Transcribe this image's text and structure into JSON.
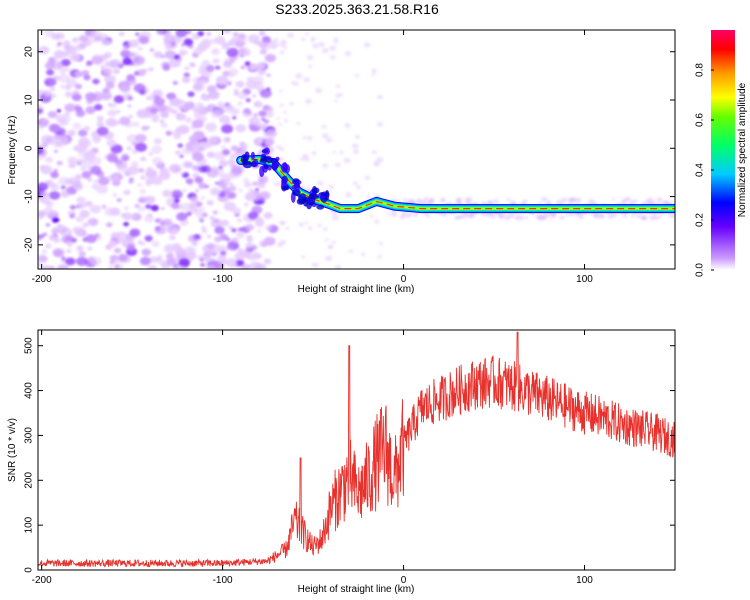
{
  "title": "S233.2025.363.21.58.R16",
  "chart_data": [
    {
      "type": "heatmap",
      "xlabel": "Height of straight line (km)",
      "ylabel": "Frequency (Hz)",
      "xlim": [
        -202,
        150
      ],
      "ylim": [
        -25,
        24.5
      ],
      "xticks": [
        -200,
        -100,
        0,
        100
      ],
      "yticks": [
        -20,
        -10,
        0,
        10,
        20
      ],
      "noise_region_x": [
        -202,
        -72
      ],
      "signal_track": [
        {
          "x": -90,
          "y": -2.5
        },
        {
          "x": -80,
          "y": -2.3
        },
        {
          "x": -72,
          "y": -3
        },
        {
          "x": -65,
          "y": -6
        },
        {
          "x": -58,
          "y": -9
        },
        {
          "x": -50,
          "y": -10.5
        },
        {
          "x": -42,
          "y": -11.5
        },
        {
          "x": -35,
          "y": -12.5
        },
        {
          "x": -25,
          "y": -12.5
        },
        {
          "x": -15,
          "y": -11
        },
        {
          "x": -5,
          "y": -12
        },
        {
          "x": 10,
          "y": -12.5
        },
        {
          "x": 40,
          "y": -12.5
        },
        {
          "x": 80,
          "y": -12.5
        },
        {
          "x": 150,
          "y": -12.5
        }
      ],
      "colorbar": {
        "label": "Normalized spectral amplitude",
        "range": [
          0,
          0.96
        ],
        "ticks": [
          "0.0",
          "0.2",
          "0.4",
          "0.6",
          "0.8"
        ],
        "tick_values": [
          0,
          0.2,
          0.4,
          0.6,
          0.8
        ]
      }
    },
    {
      "type": "line",
      "xlabel": "Height of straight line (km)",
      "ylabel": "SNR (10 * v/v)",
      "xlim": [
        -202,
        150
      ],
      "ylim": [
        0,
        535
      ],
      "xticks": [
        -200,
        -100,
        0,
        100
      ],
      "yticks": [
        0,
        100,
        200,
        300,
        400,
        500
      ],
      "color": "#e8312c",
      "envelope": [
        [
          -202,
          15
        ],
        [
          -150,
          15
        ],
        [
          -100,
          15
        ],
        [
          -75,
          20
        ],
        [
          -65,
          45
        ],
        [
          -60,
          110
        ],
        [
          -55,
          80
        ],
        [
          -50,
          50
        ],
        [
          -45,
          70
        ],
        [
          -40,
          140
        ],
        [
          -30,
          210
        ],
        [
          -25,
          170
        ],
        [
          -20,
          200
        ],
        [
          -15,
          240
        ],
        [
          -10,
          270
        ],
        [
          -5,
          200
        ],
        [
          0,
          280
        ],
        [
          10,
          360
        ],
        [
          20,
          380
        ],
        [
          30,
          400
        ],
        [
          40,
          415
        ],
        [
          50,
          420
        ],
        [
          60,
          410
        ],
        [
          70,
          395
        ],
        [
          80,
          380
        ],
        [
          90,
          365
        ],
        [
          100,
          350
        ],
        [
          110,
          340
        ],
        [
          120,
          325
        ],
        [
          130,
          315
        ],
        [
          140,
          305
        ],
        [
          150,
          290
        ]
      ],
      "spikes": [
        {
          "x": -30,
          "y": 500
        },
        {
          "x": -57,
          "y": 250
        },
        {
          "x": 63,
          "y": 530
        }
      ]
    }
  ]
}
